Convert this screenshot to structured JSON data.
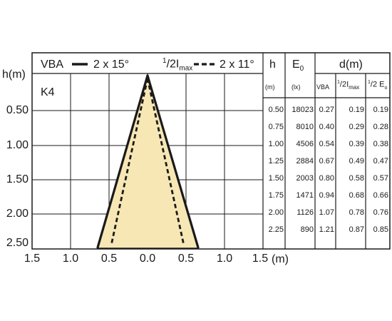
{
  "diagram": {
    "y_axis_label": "h(m)",
    "x_axis_unit": "(m)",
    "code": "K4",
    "y_ticks": [
      "0.50",
      "1.00",
      "1.50",
      "2.00",
      "2.50"
    ],
    "x_ticks": [
      "1.5",
      "1.0",
      "0.5",
      "0.0",
      "0.5",
      "1.0",
      "1.5"
    ],
    "legend": {
      "vba_label": "VBA",
      "vba_value": "2 x 15°",
      "half_imax_value": "2 x 11°"
    },
    "colors": {
      "beam_fill": "#f7e7b4",
      "frame": "#1a1a1a"
    }
  },
  "table": {
    "headers": {
      "h": "h",
      "e0": "E",
      "e0_sub": "0",
      "d": "d(m)"
    },
    "units": {
      "h": "(m)",
      "e0": "(lx)",
      "vba": "VBA",
      "imax": "max",
      "e0c": "E"
    },
    "rows": [
      [
        "0.50",
        "18023",
        "0.27",
        "0.19",
        "0.19"
      ],
      [
        "0.75",
        "8010",
        "0.40",
        "0.29",
        "0.28"
      ],
      [
        "1.00",
        "4506",
        "0.54",
        "0.39",
        "0.38"
      ],
      [
        "1.25",
        "2884",
        "0.67",
        "0.49",
        "0.47"
      ],
      [
        "1.50",
        "2003",
        "0.80",
        "0.58",
        "0.57"
      ],
      [
        "1.75",
        "1471",
        "0.94",
        "0.68",
        "0.66"
      ],
      [
        "2.00",
        "1126",
        "1.07",
        "0.78",
        "0.76"
      ],
      [
        "2.25",
        "890",
        "1.21",
        "0.87",
        "0.85"
      ]
    ]
  }
}
